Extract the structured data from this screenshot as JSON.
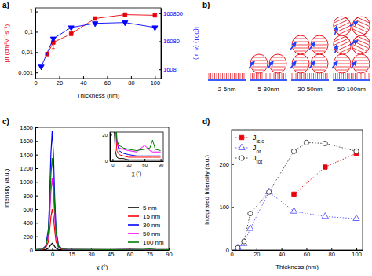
{
  "chart_data": [
    {
      "type": "line",
      "title": "a)",
      "xlabel": "Thickness (nm)",
      "ylabel": "μt (cm²V⁻¹s⁻¹)",
      "y2label": "I(001) (a.u.)",
      "xlim": [
        0,
        105
      ],
      "xticks": [
        0,
        20,
        40,
        60,
        80,
        100
      ],
      "log": "y",
      "ylim": [
        0.0005,
        1.5
      ],
      "yticks": [
        {
          "value": 0.001,
          "label": "0,001"
        },
        {
          "value": 0.01,
          "label": "0,01"
        },
        {
          "value": 0.1,
          "label": "0,1"
        },
        1
      ],
      "y2lim": [
        750,
        250000
      ],
      "y2ticks": [
        1608,
        16080,
        160800
      ],
      "series": [
        {
          "color": "#e8000b",
          "marker": "square",
          "line_style": "solid",
          "x": [
            10,
            15,
            30,
            50,
            75,
            100
          ],
          "values": [
            0.008,
            0.03,
            0.08,
            0.45,
            0.7,
            0.65
          ],
          "errors": [
            null,
            0.015,
            null,
            null,
            null,
            null
          ]
        },
        {
          "color": "#0000ff",
          "marker": "triangle-down",
          "line_style": "solid",
          "axis": "y2",
          "x": [
            5,
            15,
            30,
            50,
            75,
            100
          ],
          "values": [
            2000,
            20000,
            50000,
            70000,
            75000,
            50000
          ]
        }
      ]
    },
    {
      "type": "diagram",
      "title": "b)",
      "categories": [
        "2-5nm",
        "5-30nm",
        "30-50nm",
        "50-100nm"
      ]
    },
    {
      "type": "line",
      "title": "c)",
      "xlabel": "χ (°)",
      "ylabel": "Intensity (a.u.)",
      "xlim": [
        -13,
        90
      ],
      "xticks": [
        0,
        15,
        30,
        45,
        60,
        75,
        90
      ],
      "ylim": [
        0,
        1800
      ],
      "yticks": [
        0,
        200,
        400,
        600,
        800,
        1000,
        1200,
        1400,
        1600,
        1800
      ],
      "legend": "lower right",
      "x": [
        -13,
        -8,
        -5,
        -3,
        -2,
        -1,
        0,
        1,
        2,
        3,
        5,
        8,
        12,
        20,
        30,
        45,
        60,
        70,
        75,
        80,
        90
      ],
      "series": [
        {
          "name": "5 nm",
          "color": "#000000",
          "line_style": "solid",
          "values": [
            2,
            3,
            8,
            25,
            50,
            80,
            100,
            80,
            50,
            25,
            8,
            3,
            2,
            2,
            1,
            1,
            1,
            1,
            1,
            1,
            1
          ]
        },
        {
          "name": "15 nm",
          "color": "#ff0000",
          "line_style": "solid",
          "values": [
            3,
            5,
            30,
            120,
            280,
            480,
            600,
            480,
            280,
            120,
            30,
            8,
            5,
            4,
            3,
            3,
            3,
            3,
            3,
            3,
            3
          ]
        },
        {
          "name": "30 nm",
          "color": "#0000ff",
          "line_style": "solid",
          "values": [
            5,
            10,
            60,
            300,
            750,
            1400,
            1750,
            1400,
            750,
            300,
            60,
            15,
            8,
            6,
            5,
            4,
            4,
            4,
            4,
            4,
            4
          ]
        },
        {
          "name": "50 nm",
          "color": "#ff00ff",
          "line_style": "solid",
          "values": [
            6,
            12,
            40,
            200,
            480,
            850,
            1050,
            850,
            480,
            200,
            40,
            15,
            10,
            9,
            8,
            7,
            12,
            8,
            7,
            7,
            7
          ]
        },
        {
          "name": "100 nm",
          "color": "#008000",
          "line_style": "solid",
          "values": [
            8,
            14,
            45,
            250,
            600,
            1100,
            1350,
            1100,
            600,
            250,
            45,
            16,
            12,
            10,
            9,
            8,
            9,
            10,
            16,
            9,
            8
          ]
        }
      ]
    },
    {
      "type": "line",
      "xlabel": "χ (°)",
      "xlim": [
        -5,
        95
      ],
      "xticks": [
        0,
        30,
        60,
        90
      ],
      "ylim": [
        0,
        22
      ],
      "yticks": [
        0,
        20
      ]
    },
    {
      "type": "line",
      "title": "d)",
      "xlabel": "Thickness (nm)",
      "ylabel": "Integrated Intensity (a.u.)",
      "xlim": [
        0,
        105
      ],
      "xticks": [
        0,
        20,
        40,
        60,
        80,
        100
      ],
      "ylim": [
        0,
        280
      ],
      "yticks": [
        0,
        100,
        200
      ],
      "legend": "upper left",
      "series": [
        {
          "name": "Jis,o",
          "color": "#e8000b",
          "marker": "square",
          "line_style": "dotted",
          "x": [
            50,
            75,
            100
          ],
          "values": [
            130,
            193,
            225
          ]
        },
        {
          "name": "Jor",
          "color": "#5555ff",
          "marker": "open-triangle",
          "line_style": "dotted",
          "x": [
            5,
            10,
            15,
            30,
            50,
            75,
            100
          ],
          "values": [
            5,
            15,
            50,
            135,
            90,
            78,
            73
          ]
        },
        {
          "name": "Jtot",
          "color": "#333333",
          "marker": "open-circle",
          "line_style": "dotted",
          "x": [
            5,
            10,
            15,
            30,
            50,
            60,
            75,
            100
          ],
          "values": [
            5,
            20,
            85,
            135,
            230,
            250,
            248,
            230
          ]
        }
      ]
    }
  ]
}
